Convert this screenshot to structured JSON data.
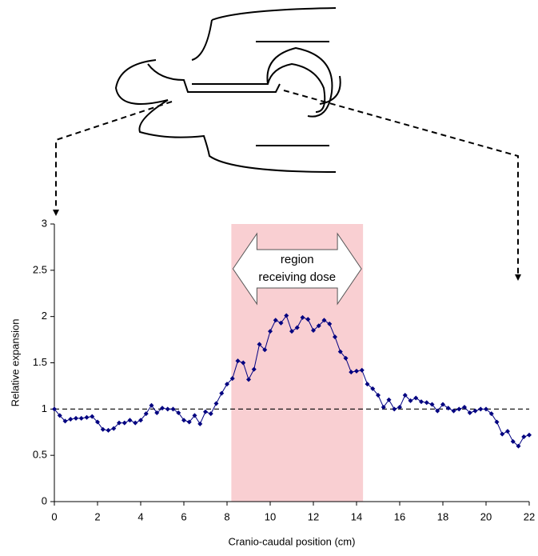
{
  "chart_data": {
    "type": "line",
    "xlabel": "Cranio-caudal position (cm)",
    "ylabel": "Relative expansion",
    "annotation": [
      "region",
      "receiving dose"
    ],
    "shaded_region": [
      8.2,
      14.3
    ],
    "shade_color": "#f9cfd2",
    "reference_line": 1,
    "xlim": [
      0,
      22
    ],
    "xticks": [
      0,
      2,
      4,
      6,
      8,
      10,
      12,
      14,
      16,
      18,
      20,
      22
    ],
    "ylim": [
      0,
      3
    ],
    "yticks": [
      0,
      0.5,
      1,
      1.5,
      2,
      2.5,
      3
    ],
    "x": [
      0,
      0.25,
      0.5,
      0.75,
      1,
      1.25,
      1.5,
      1.75,
      2,
      2.25,
      2.5,
      2.75,
      3,
      3.25,
      3.5,
      3.75,
      4,
      4.25,
      4.5,
      4.75,
      5,
      5.25,
      5.5,
      5.75,
      6,
      6.25,
      6.5,
      6.75,
      7,
      7.25,
      7.5,
      7.75,
      8,
      8.25,
      8.5,
      8.75,
      9,
      9.25,
      9.5,
      9.75,
      10,
      10.25,
      10.5,
      10.75,
      11,
      11.25,
      11.5,
      11.75,
      12,
      12.25,
      12.5,
      12.75,
      13,
      13.25,
      13.5,
      13.75,
      14,
      14.25,
      14.5,
      14.75,
      15,
      15.25,
      15.5,
      15.75,
      16,
      16.25,
      16.5,
      16.75,
      17,
      17.25,
      17.5,
      17.75,
      18,
      18.25,
      18.5,
      18.75,
      19,
      19.25,
      19.5,
      19.75,
      20,
      20.25,
      20.5,
      20.75,
      21,
      21.25,
      21.5,
      21.75,
      22
    ],
    "series": [
      {
        "color": "#000080",
        "values": [
          1.0,
          0.93,
          0.87,
          0.89,
          0.9,
          0.9,
          0.91,
          0.92,
          0.86,
          0.78,
          0.77,
          0.79,
          0.85,
          0.85,
          0.88,
          0.85,
          0.88,
          0.95,
          1.04,
          0.96,
          1.01,
          1.0,
          1.0,
          0.96,
          0.88,
          0.86,
          0.93,
          0.84,
          0.97,
          0.95,
          1.06,
          1.17,
          1.27,
          1.33,
          1.52,
          1.5,
          1.32,
          1.43,
          1.7,
          1.64,
          1.84,
          1.96,
          1.93,
          2.01,
          1.84,
          1.88,
          1.99,
          1.97,
          1.85,
          1.9,
          1.96,
          1.92,
          1.78,
          1.62,
          1.55,
          1.4,
          1.41,
          1.42,
          1.27,
          1.22,
          1.15,
          1.02,
          1.1,
          1.0,
          1.02,
          1.15,
          1.09,
          1.12,
          1.08,
          1.07,
          1.05,
          0.98,
          1.05,
          1.01,
          0.98,
          1.0,
          1.02,
          0.96,
          0.98,
          1.0,
          1.0,
          0.95,
          0.86,
          0.73,
          0.76,
          0.65,
          0.6,
          0.7,
          0.72
        ]
      }
    ]
  }
}
